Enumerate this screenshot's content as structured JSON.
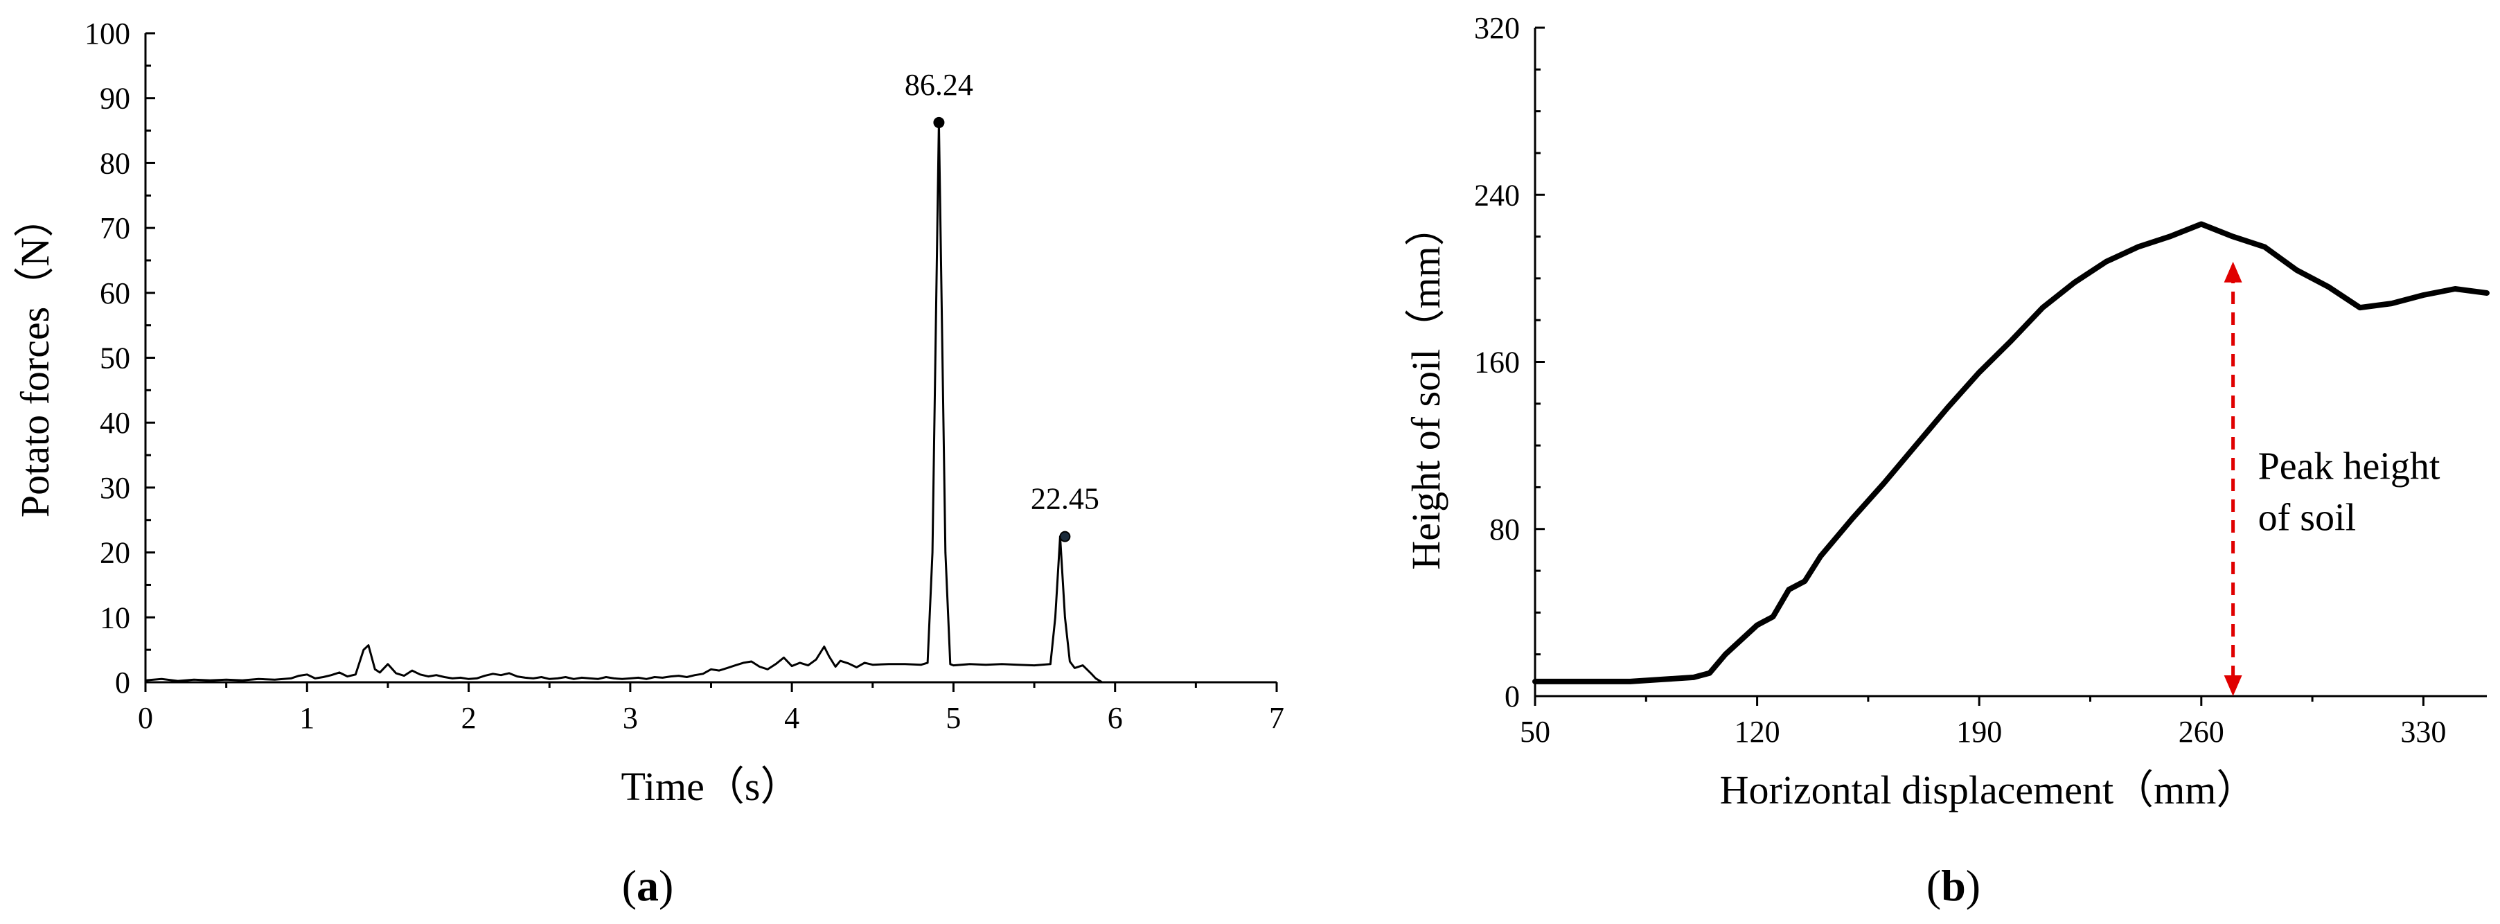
{
  "chart_data": [
    {
      "type": "line",
      "panel_label_open": "(",
      "panel_label_letter": "a",
      "panel_label_close": ")",
      "xlabel": "Time（s）",
      "ylabel": "Potato forces（N）",
      "xlim": [
        0,
        7
      ],
      "ylim": [
        0,
        100
      ],
      "xticks": [
        0,
        1,
        2,
        3,
        4,
        5,
        6,
        7
      ],
      "yticks": [
        0,
        10,
        20,
        30,
        40,
        50,
        60,
        70,
        80,
        90,
        100
      ],
      "grid": false,
      "series": [
        {
          "x": [
            0,
            0.1,
            0.2,
            0.3,
            0.4,
            0.5,
            0.6,
            0.7,
            0.8,
            0.9,
            0.95,
            1.0,
            1.05,
            1.1,
            1.15,
            1.2,
            1.25,
            1.3,
            1.35,
            1.38,
            1.42,
            1.45,
            1.5,
            1.55,
            1.6,
            1.65,
            1.7,
            1.75,
            1.8,
            1.85,
            1.9,
            1.95,
            2.0,
            2.05,
            2.1,
            2.15,
            2.2,
            2.25,
            2.3,
            2.35,
            2.4,
            2.45,
            2.5,
            2.55,
            2.6,
            2.65,
            2.7,
            2.75,
            2.8,
            2.85,
            2.9,
            2.95,
            3.0,
            3.05,
            3.1,
            3.15,
            3.2,
            3.25,
            3.3,
            3.35,
            3.4,
            3.45,
            3.5,
            3.55,
            3.6,
            3.65,
            3.7,
            3.75,
            3.8,
            3.85,
            3.9,
            3.95,
            4.0,
            4.05,
            4.1,
            4.15,
            4.2,
            4.23,
            4.27,
            4.3,
            4.35,
            4.4,
            4.45,
            4.5,
            4.6,
            4.7,
            4.8,
            4.84,
            4.87,
            4.91,
            4.95,
            4.98,
            5.0,
            5.1,
            5.2,
            5.3,
            5.4,
            5.5,
            5.6,
            5.63,
            5.66,
            5.69,
            5.72,
            5.75,
            5.8,
            5.85,
            5.88,
            5.92
          ],
          "values": [
            0.3,
            0.5,
            0.2,
            0.4,
            0.3,
            0.4,
            0.3,
            0.5,
            0.4,
            0.6,
            1.0,
            1.2,
            0.6,
            0.8,
            1.1,
            1.5,
            0.9,
            1.2,
            5.0,
            5.7,
            2.0,
            1.5,
            2.8,
            1.4,
            1.0,
            1.8,
            1.2,
            0.9,
            1.1,
            0.8,
            0.6,
            0.7,
            0.5,
            0.6,
            1.0,
            1.3,
            1.1,
            1.4,
            0.9,
            0.7,
            0.6,
            0.8,
            0.5,
            0.6,
            0.8,
            0.5,
            0.7,
            0.6,
            0.5,
            0.8,
            0.6,
            0.5,
            0.6,
            0.7,
            0.5,
            0.8,
            0.7,
            0.9,
            1.0,
            0.8,
            1.1,
            1.3,
            2.0,
            1.8,
            2.2,
            2.6,
            3.0,
            3.2,
            2.4,
            2.0,
            2.8,
            3.8,
            2.5,
            3.0,
            2.6,
            3.5,
            5.5,
            4.0,
            2.4,
            3.3,
            2.9,
            2.3,
            3.0,
            2.7,
            2.8,
            2.8,
            2.7,
            3.0,
            20.0,
            86.24,
            20.0,
            2.8,
            2.6,
            2.8,
            2.7,
            2.8,
            2.7,
            2.6,
            2.8,
            10.0,
            22.45,
            10.0,
            3.2,
            2.2,
            2.6,
            1.4,
            0.6,
            0.0
          ]
        }
      ],
      "annotations": [
        {
          "x": 4.91,
          "y": 86.24,
          "text": "86.24"
        },
        {
          "x": 5.69,
          "y": 22.45,
          "text": "22.45"
        }
      ]
    },
    {
      "type": "line",
      "panel_label_open": "(",
      "panel_label_letter": "b",
      "panel_label_close": ")",
      "xlabel": "Horizontal displacement（mm）",
      "ylabel": "Height of soil（mm）",
      "xlim": [
        50,
        350
      ],
      "ylim": [
        0,
        320
      ],
      "xticks": [
        50,
        120,
        190,
        260,
        330
      ],
      "yticks": [
        0,
        80,
        160,
        240,
        320
      ],
      "grid": false,
      "series": [
        {
          "x": [
            50,
            60,
            70,
            80,
            90,
            100,
            105,
            110,
            120,
            125,
            130,
            135,
            140,
            150,
            160,
            170,
            180,
            190,
            200,
            210,
            220,
            230,
            240,
            250,
            260,
            270,
            280,
            290,
            300,
            310,
            320,
            330,
            340,
            350
          ],
          "values": [
            7,
            7,
            7,
            7,
            8,
            9,
            11,
            20,
            34,
            38,
            51,
            55,
            67,
            85,
            102,
            120,
            138,
            155,
            170,
            186,
            198,
            208,
            215,
            220,
            226,
            220,
            215,
            204,
            196,
            186,
            188,
            192,
            195,
            193
          ]
        }
      ],
      "annotations": [
        {
          "x": 270,
          "y_from": 0,
          "y_to": 208,
          "text_line1": "Peak height",
          "text_line2": "of soil",
          "color": "#e00000"
        }
      ]
    }
  ]
}
